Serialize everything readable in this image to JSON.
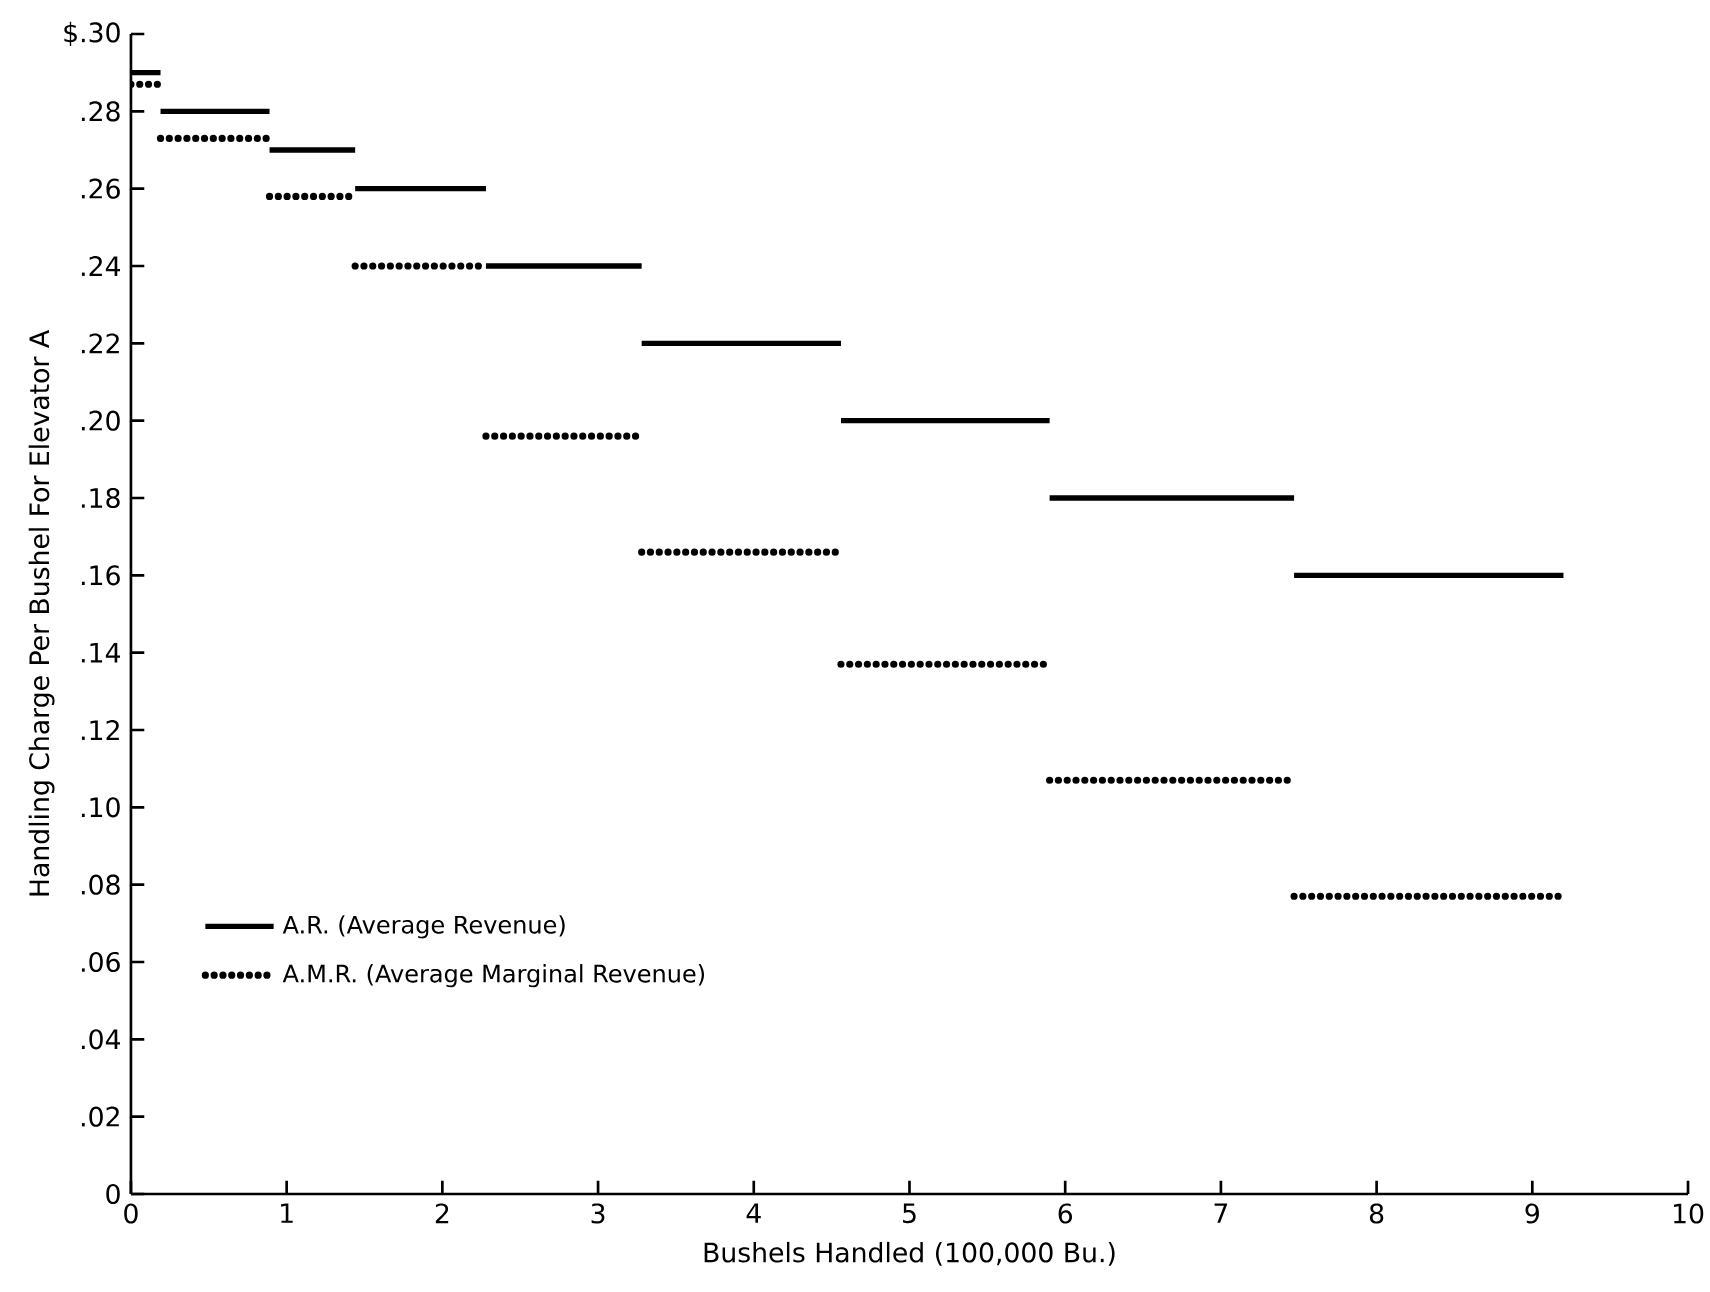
{
  "chart_data": {
    "type": "line",
    "xlabel": "Bushels Handled (100,000 Bu.)",
    "ylabel": "Handling Charge Per Bushel For Elevator A",
    "xlim": [
      0,
      10
    ],
    "ylim": [
      0,
      0.3
    ],
    "xticks": [
      0,
      1,
      2,
      3,
      4,
      5,
      6,
      7,
      8,
      9,
      10
    ],
    "yticks": [
      0,
      {
        "value": 0.02,
        "label": ".02"
      },
      {
        "value": 0.04,
        "label": ".04"
      },
      {
        "value": 0.06,
        "label": ".06"
      },
      {
        "value": 0.08,
        "label": ".08"
      },
      {
        "value": 0.1,
        "label": ".10"
      },
      {
        "value": 0.12,
        "label": ".12"
      },
      {
        "value": 0.14,
        "label": ".14"
      },
      {
        "value": 0.16,
        "label": ".16"
      },
      {
        "value": 0.18,
        "label": ".18"
      },
      {
        "value": 0.2,
        "label": ".20"
      },
      {
        "value": 0.22,
        "label": ".22"
      },
      {
        "value": 0.24,
        "label": ".24"
      },
      {
        "value": 0.26,
        "label": ".26"
      },
      {
        "value": 0.28,
        "label": ".28"
      },
      {
        "value": 0.3,
        "label": "$.30"
      }
    ],
    "legend": "left",
    "series": [
      {
        "name": "A.R. (Average Revenue)",
        "color": "#000000",
        "line_style": "solid",
        "x": [
          0,
          0.19,
          null,
          0.19,
          0.89,
          null,
          0.89,
          1.44,
          null,
          1.44,
          2.28,
          null,
          2.28,
          3.28,
          null,
          3.28,
          4.56,
          null,
          4.56,
          5.9,
          null,
          5.9,
          7.47,
          null,
          7.47,
          9.2
        ],
        "values": [
          0.29,
          0.29,
          null,
          0.28,
          0.28,
          null,
          0.27,
          0.27,
          null,
          0.26,
          0.26,
          null,
          0.24,
          0.24,
          null,
          0.22,
          0.22,
          null,
          0.2,
          0.2,
          null,
          0.18,
          0.18,
          null,
          0.16,
          0.16
        ]
      },
      {
        "name": "A.M.R. (Average Marginal Revenue)",
        "color": "#000000",
        "line_style": "dotted",
        "x": [
          0,
          0.19,
          null,
          0.19,
          0.89,
          null,
          0.89,
          1.44,
          null,
          1.44,
          2.28,
          null,
          2.28,
          3.28,
          null,
          3.28,
          4.56,
          null,
          4.56,
          5.9,
          null,
          5.9,
          7.47,
          null,
          7.47,
          9.2
        ],
        "values": [
          0.287,
          0.287,
          null,
          0.273,
          0.273,
          null,
          0.258,
          0.258,
          null,
          0.24,
          0.24,
          null,
          0.196,
          0.196,
          null,
          0.166,
          0.166,
          null,
          0.137,
          0.137,
          null,
          0.107,
          0.107,
          null,
          0.077,
          0.077
        ]
      }
    ]
  }
}
